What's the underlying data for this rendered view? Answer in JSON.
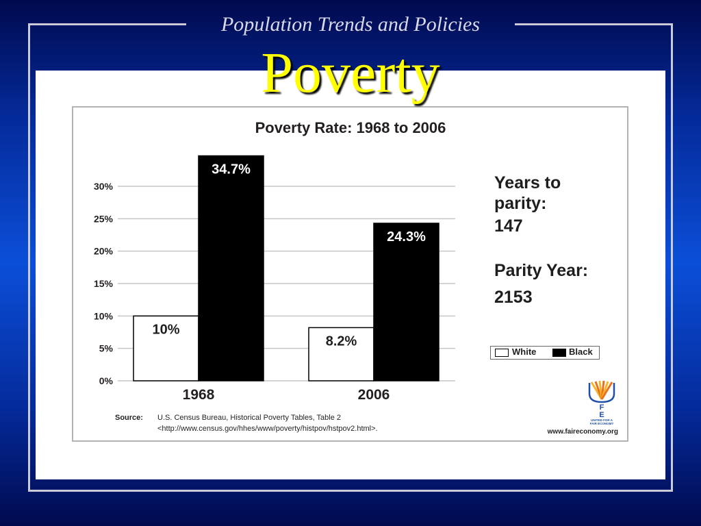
{
  "slide": {
    "header": "Population Trends and Policies",
    "title": "Poverty"
  },
  "colors": {
    "title": "#ffff00",
    "header_text": "#d9d9e8",
    "frame": "#c9cbd8",
    "background_dark": "#010a4e",
    "background_bright": "#0b4fd8",
    "panel": "#ffffff",
    "logo_orange": "#f29a1f",
    "logo_blue": "#1f4fa6"
  },
  "chart_data": {
    "type": "bar",
    "title": "Poverty Rate: 1968 to 2006",
    "xlabel": "",
    "ylabel": "",
    "categories": [
      "1968",
      "2006"
    ],
    "series": [
      {
        "name": "White",
        "color": "#ffffff",
        "values": [
          10,
          8.2
        ],
        "data_labels": [
          "10%",
          "8.2%"
        ]
      },
      {
        "name": "Black",
        "color": "#000000",
        "values": [
          34.7,
          24.3
        ],
        "data_labels": [
          "34.7%",
          "24.3%"
        ]
      }
    ],
    "y_ticks": [
      0,
      5,
      10,
      15,
      20,
      25,
      30
    ],
    "y_tick_labels": [
      "0%",
      "5%",
      "10%",
      "15%",
      "20%",
      "25%",
      "30%"
    ],
    "ylim": [
      0,
      35
    ],
    "grid": true,
    "legend": "right",
    "annotations": {
      "parity_label": "Years to parity:",
      "parity_years": "147",
      "parity_year_label": "Parity Year:",
      "parity_year": "2153"
    }
  },
  "source": {
    "label": "Source:",
    "line1": "U.S. Census Bureau, Historical Poverty Tables, Table 2",
    "line2": "<http://www.census.gov/hhes/www/poverty/histpov/hstpov2.html>."
  },
  "website": "www.faireconomy.org",
  "logo": {
    "letters": [
      "U",
      "F",
      "E"
    ],
    "tagline": [
      "UNITED FOR A",
      "FAIR ECONOMY"
    ]
  }
}
